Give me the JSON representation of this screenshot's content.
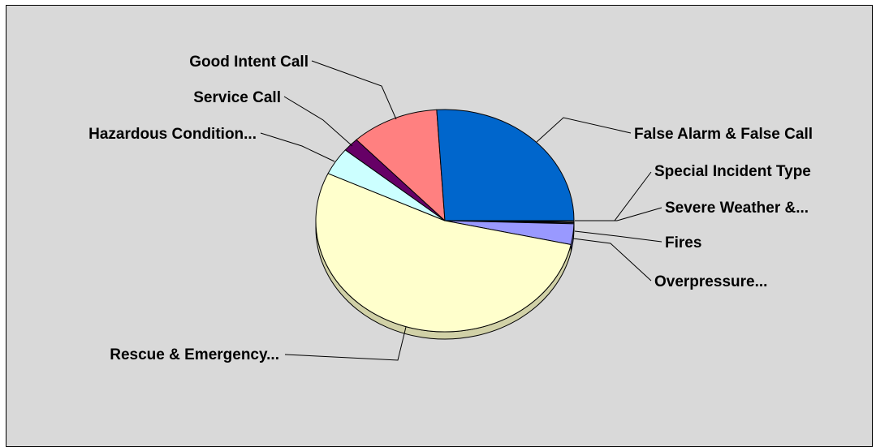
{
  "chart_data": {
    "type": "pie",
    "title": "",
    "three_d": true,
    "start_angle_deg": 0,
    "direction": "clockwise",
    "legend": "none",
    "slices": [
      {
        "label": "Special Incident Type",
        "value": 0.15,
        "color": "#ffffff"
      },
      {
        "label": "Severe Weather &...",
        "value": 0.15,
        "color": "#ffffff"
      },
      {
        "label": "Fires",
        "value": 0.15,
        "color": "#9999ff"
      },
      {
        "label": "Overpressure...",
        "value": 3.0,
        "color": "#9999ff"
      },
      {
        "label": "Rescue & Emergency...",
        "value": 53.5,
        "color": "#ffffcc"
      },
      {
        "label": "Hazardous Condition...",
        "value": 4.0,
        "color": "#ccffff"
      },
      {
        "label": "Service Call",
        "value": 2.0,
        "color": "#660066"
      },
      {
        "label": "Good Intent Call",
        "value": 11.0,
        "color": "#ff8080"
      },
      {
        "label": "False Alarm & False Call",
        "value": 26.0,
        "color": "#0066cc"
      }
    ]
  }
}
